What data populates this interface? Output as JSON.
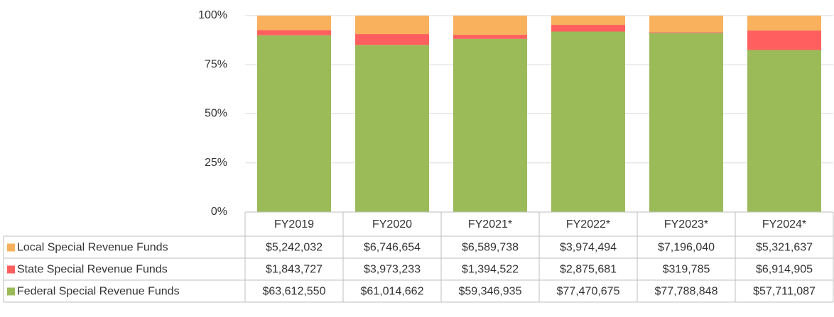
{
  "chart_data": {
    "type": "bar",
    "stack": "percent",
    "categories": [
      "FY2019",
      "FY2020",
      "FY2021*",
      "FY2022*",
      "FY2023*",
      "FY2024*"
    ],
    "series": [
      {
        "name": "Local Special Revenue Funds",
        "color": "#f9b15e",
        "values": [
          5242032,
          6746654,
          6589738,
          3974494,
          7196040,
          5321637
        ],
        "value_labels": [
          "$5,242,032",
          "$6,746,654",
          "$6,589,738",
          "$3,974,494",
          "$7,196,040",
          "$5,321,637"
        ]
      },
      {
        "name": "State Special Revenue Funds",
        "color": "#ff5f5f",
        "values": [
          1843727,
          3973233,
          1394522,
          2875681,
          319785,
          6914905
        ],
        "value_labels": [
          "$1,843,727",
          "$3,973,233",
          "$1,394,522",
          "$2,875,681",
          "$319,785",
          "$6,914,905"
        ]
      },
      {
        "name": "Federal Special Revenue Funds",
        "color": "#9bbb59",
        "values": [
          63612550,
          61014662,
          59346935,
          77470675,
          77788848,
          57711087
        ],
        "value_labels": [
          "$63,612,550",
          "$61,014,662",
          "$59,346,935",
          "$77,470,675",
          "$77,788,848",
          "$57,711,087"
        ]
      }
    ],
    "ylim": [
      0,
      100
    ],
    "yticks": [
      {
        "value": 0,
        "label": "0%"
      },
      {
        "value": 25,
        "label": "25%"
      },
      {
        "value": 50,
        "label": "50%"
      },
      {
        "value": 75,
        "label": "75%"
      },
      {
        "value": 100,
        "label": "100%"
      }
    ],
    "grid": true
  }
}
